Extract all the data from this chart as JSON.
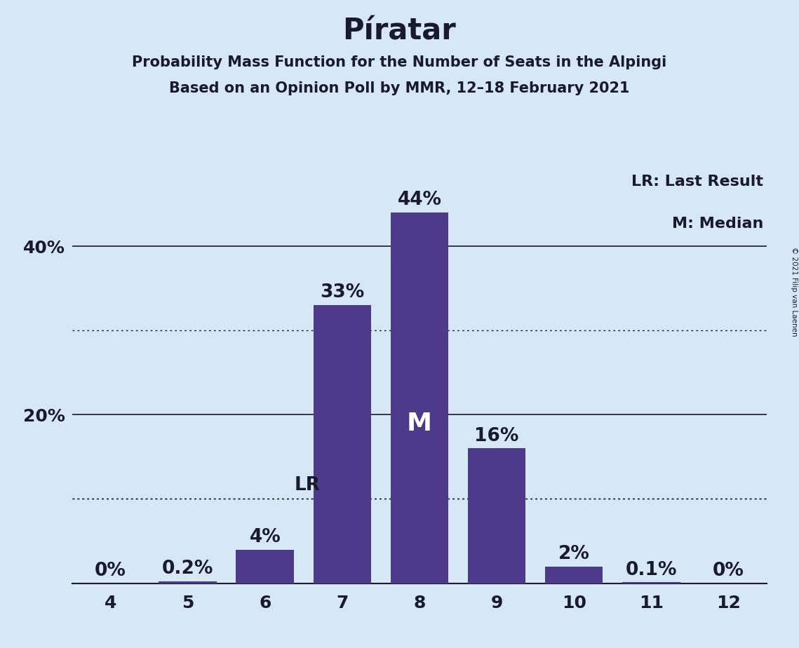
{
  "title": "Píratar",
  "subtitle1": "Probability Mass Function for the Number of Seats in the Alpingi",
  "subtitle2": "Based on an Opinion Poll by MMR, 12–18 February 2021",
  "copyright": "© 2021 Filip van Laenen",
  "categories": [
    4,
    5,
    6,
    7,
    8,
    9,
    10,
    11,
    12
  ],
  "values": [
    0.0,
    0.2,
    4.0,
    33.0,
    44.0,
    16.0,
    2.0,
    0.1,
    0.0
  ],
  "bar_labels": [
    "0%",
    "0.2%",
    "4%",
    "33%",
    "44%",
    "16%",
    "2%",
    "0.1%",
    "0%"
  ],
  "bar_color": "#4d3a8a",
  "background_color": "#d6e8f5",
  "text_color": "#1a1a2e",
  "solid_gridlines": [
    20,
    40
  ],
  "dotted_gridlines": [
    10,
    30
  ],
  "ylim": [
    0,
    50
  ],
  "lr_seat": 6,
  "lr_value": 10.0,
  "median_seat": 8,
  "legend_lr": "LR: Last Result",
  "legend_m": "M: Median",
  "title_fontsize": 30,
  "subtitle_fontsize": 15,
  "label_fontsize": 16,
  "tick_fontsize": 18,
  "annotation_fontsize": 19
}
